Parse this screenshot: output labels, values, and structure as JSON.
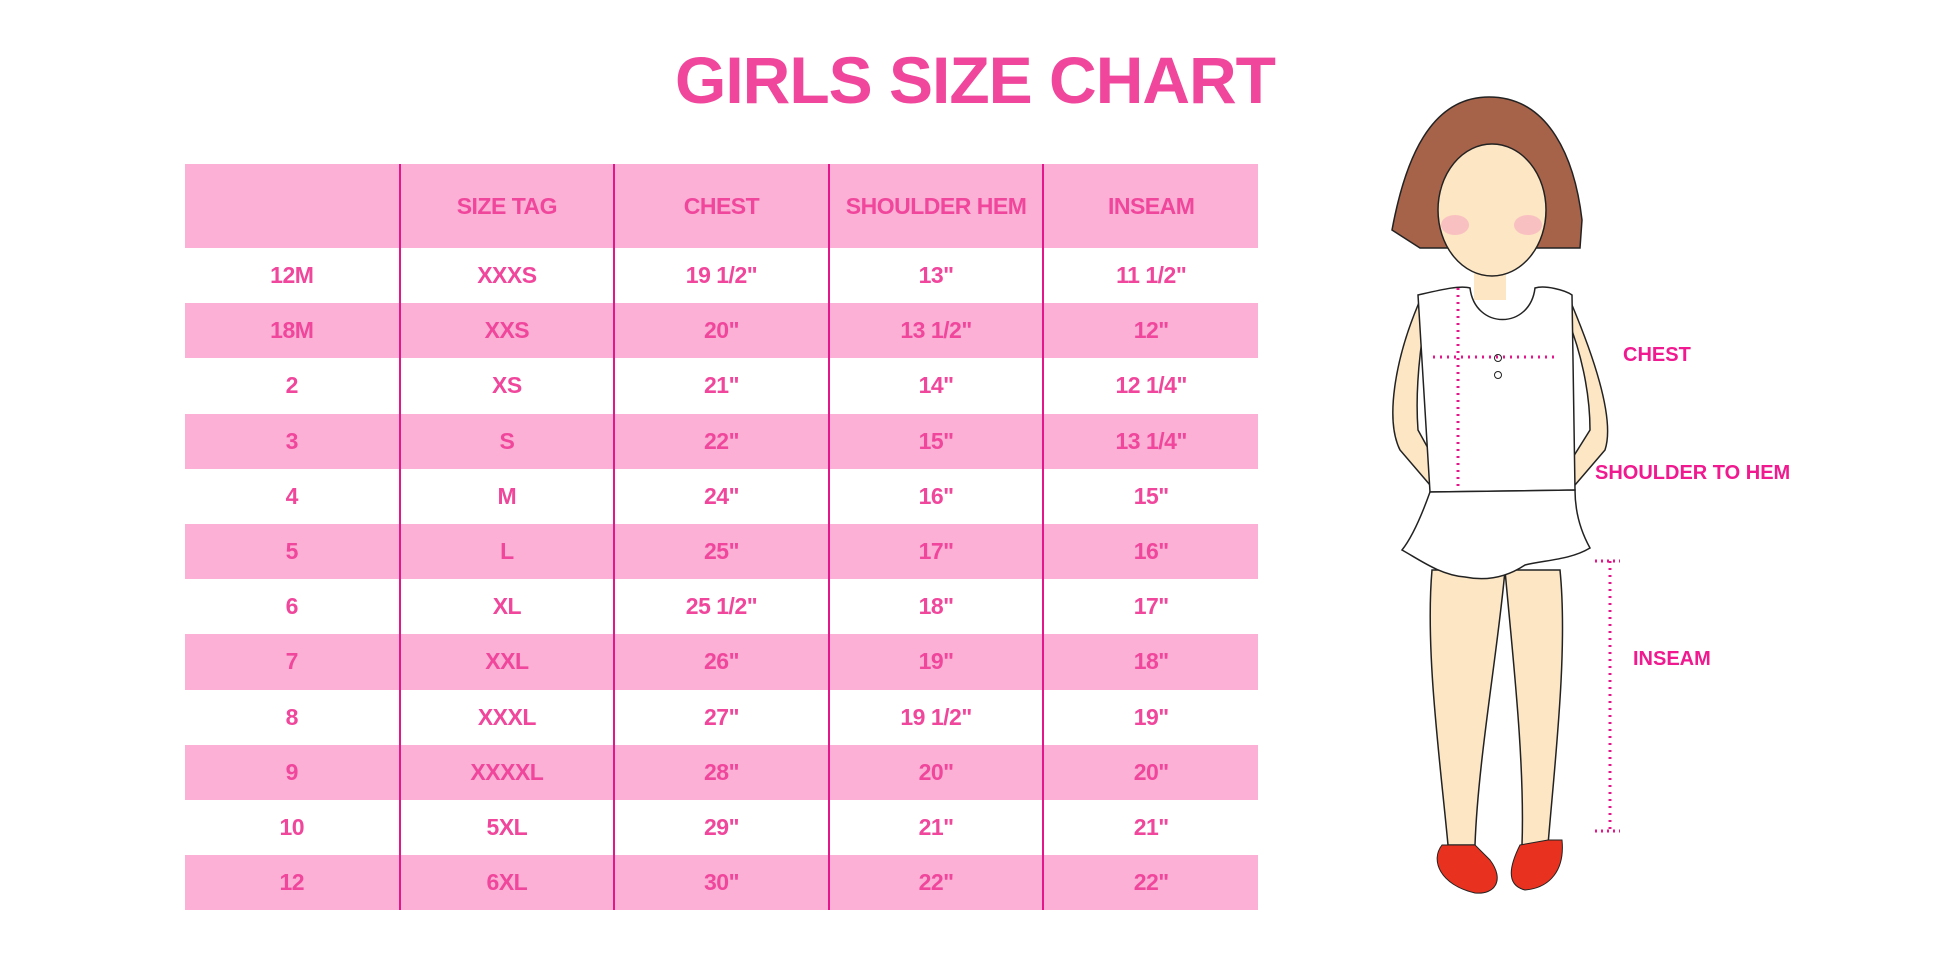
{
  "title": "GIRLS SIZE CHART",
  "table": {
    "headers": [
      "",
      "SIZE TAG",
      "CHEST",
      "SHOULDER HEM",
      "INSEAM"
    ],
    "rows": [
      [
        "12M",
        "XXXS",
        "19 1/2\"",
        "13\"",
        "11 1/2\""
      ],
      [
        "18M",
        "XXS",
        "20\"",
        "13 1/2\"",
        "12\""
      ],
      [
        "2",
        "XS",
        "21\"",
        "14\"",
        "12 1/4\""
      ],
      [
        "3",
        "S",
        "22\"",
        "15\"",
        "13 1/4\""
      ],
      [
        "4",
        "M",
        "24\"",
        "16\"",
        "15\""
      ],
      [
        "5",
        "L",
        "25\"",
        "17\"",
        "16\""
      ],
      [
        "6",
        "XL",
        "25 1/2\"",
        "18\"",
        "17\""
      ],
      [
        "7",
        "XXL",
        "26\"",
        "19\"",
        "18\""
      ],
      [
        "8",
        "XXXL",
        "27\"",
        "19 1/2\"",
        "19\""
      ],
      [
        "9",
        "XXXXL",
        "28\"",
        "20\"",
        "20\""
      ],
      [
        "10",
        "5XL",
        "29\"",
        "21\"",
        "21\""
      ],
      [
        "12",
        "6XL",
        "30\"",
        "22\"",
        "22\""
      ]
    ]
  },
  "figure": {
    "labels": {
      "chest": "CHEST",
      "shoulder": "SHOULDER TO HEM",
      "inseam": "INSEAM"
    }
  },
  "colors": {
    "accent": "#f0469c",
    "row_pink": "#fcb0d5",
    "divider": "#e4168c"
  }
}
